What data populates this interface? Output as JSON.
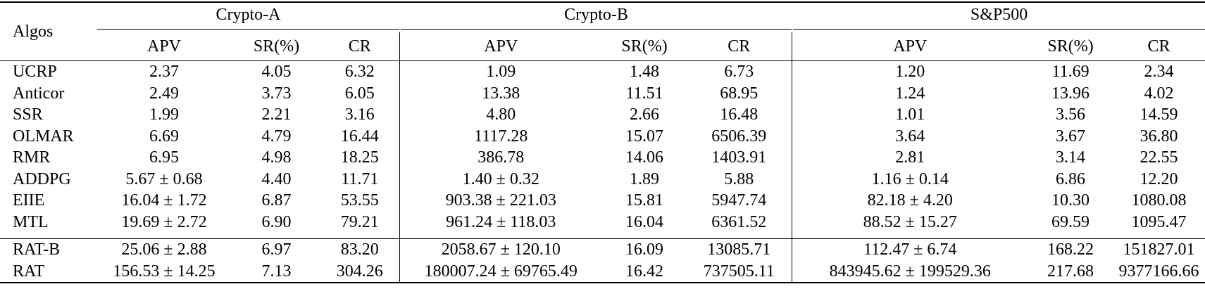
{
  "table": {
    "header": "Algos",
    "groups": [
      {
        "name": "Crypto-A",
        "columns": [
          "APV",
          "SR(%)",
          "CR"
        ]
      },
      {
        "name": "Crypto-B",
        "columns": [
          "APV",
          "SR(%)",
          "CR"
        ]
      },
      {
        "name": "S&P500",
        "columns": [
          "APV",
          "SR(%)",
          "CR"
        ]
      }
    ],
    "rows": [
      {
        "algo": "UCRP",
        "cells": [
          "2.37",
          "4.05",
          "6.32",
          "1.09",
          "1.48",
          "6.73",
          "1.20",
          "11.69",
          "2.34"
        ]
      },
      {
        "algo": "Anticor",
        "cells": [
          "2.49",
          "3.73",
          "6.05",
          "13.38",
          "11.51",
          "68.95",
          "1.24",
          "13.96",
          "4.02"
        ]
      },
      {
        "algo": "SSR",
        "cells": [
          "1.99",
          "2.21",
          "3.16",
          "4.80",
          "2.66",
          "16.48",
          "1.01",
          "3.56",
          "14.59"
        ]
      },
      {
        "algo": "OLMAR",
        "cells": [
          "6.69",
          "4.79",
          "16.44",
          "1117.28",
          "15.07",
          "6506.39",
          "3.64",
          "3.67",
          "36.80"
        ]
      },
      {
        "algo": "RMR",
        "cells": [
          "6.95",
          "4.98",
          "18.25",
          "386.78",
          "14.06",
          "1403.91",
          "2.81",
          "3.14",
          "22.55"
        ]
      },
      {
        "algo": "ADDPG",
        "cells": [
          "5.67 ± 0.68",
          "4.40",
          "11.71",
          "1.40 ± 0.32",
          "1.89",
          "5.88",
          "1.16 ± 0.14",
          "6.86",
          "12.20"
        ]
      },
      {
        "algo": "EIIE",
        "cells": [
          "16.04 ± 1.72",
          "6.87",
          "53.55",
          "903.38 ± 221.03",
          "15.81",
          "5947.74",
          "82.18 ± 4.20",
          "10.30",
          "1080.08"
        ]
      },
      {
        "algo": "MTL",
        "cells": [
          "19.69 ± 2.72",
          "6.90",
          "79.21",
          "961.24 ± 118.03",
          "16.04",
          "6361.52",
          "88.52 ± 15.27",
          "69.59",
          "1095.47"
        ]
      }
    ],
    "rows_ours": [
      {
        "algo": "RAT-B",
        "cells": [
          "25.06 ± 2.88",
          "6.97",
          "83.20",
          "2058.67 ± 120.10",
          "16.09",
          "13085.71",
          "112.47 ± 6.74",
          "168.22",
          "151827.01"
        ]
      },
      {
        "algo": "RAT",
        "cells": [
          "156.53 ± 14.25",
          "7.13",
          "304.26",
          "180007.24 ± 69765.49",
          "16.42",
          "737505.11",
          "843945.62 ± 199529.36",
          "217.68",
          "9377166.66"
        ]
      }
    ]
  }
}
